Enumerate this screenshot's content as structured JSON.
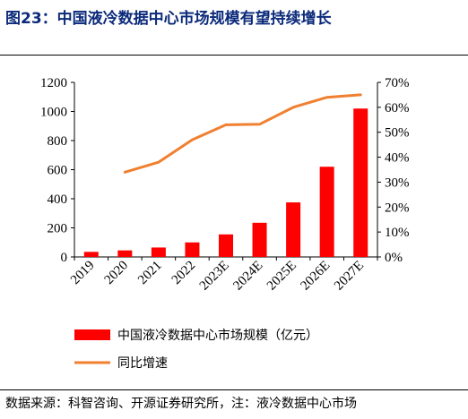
{
  "title": "图23：中国液冷数据中心市场规模有望持续增长",
  "source": "数据来源：科智咨询、开源证券研究所，注：液冷数据中心市场",
  "chart_data": {
    "type": "bar",
    "categories": [
      "2019",
      "2020",
      "2021",
      "2022",
      "2023E",
      "2024E",
      "2025E",
      "2026E",
      "2027E"
    ],
    "series": [
      {
        "name": "中国液冷数据中心市场规模（亿元）",
        "type": "bar",
        "axis": "left",
        "color": "#ff0000",
        "values": [
          35,
          45,
          65,
          100,
          155,
          235,
          375,
          620,
          1020
        ]
      },
      {
        "name": "同比增速",
        "type": "line",
        "axis": "right",
        "color": "#f08030",
        "values": [
          null,
          34,
          38,
          47,
          53,
          53.2,
          60,
          64,
          65
        ]
      }
    ],
    "y_left": {
      "min": 0,
      "max": 1200,
      "ticks": [
        "0",
        "200",
        "400",
        "600",
        "800",
        "1000",
        "1200"
      ]
    },
    "y_right": {
      "min": 0,
      "max": 70,
      "ticks": [
        "0%",
        "10%",
        "20%",
        "30%",
        "40%",
        "50%",
        "60%",
        "70%"
      ]
    },
    "legend": "bottom-left",
    "grid": false
  }
}
